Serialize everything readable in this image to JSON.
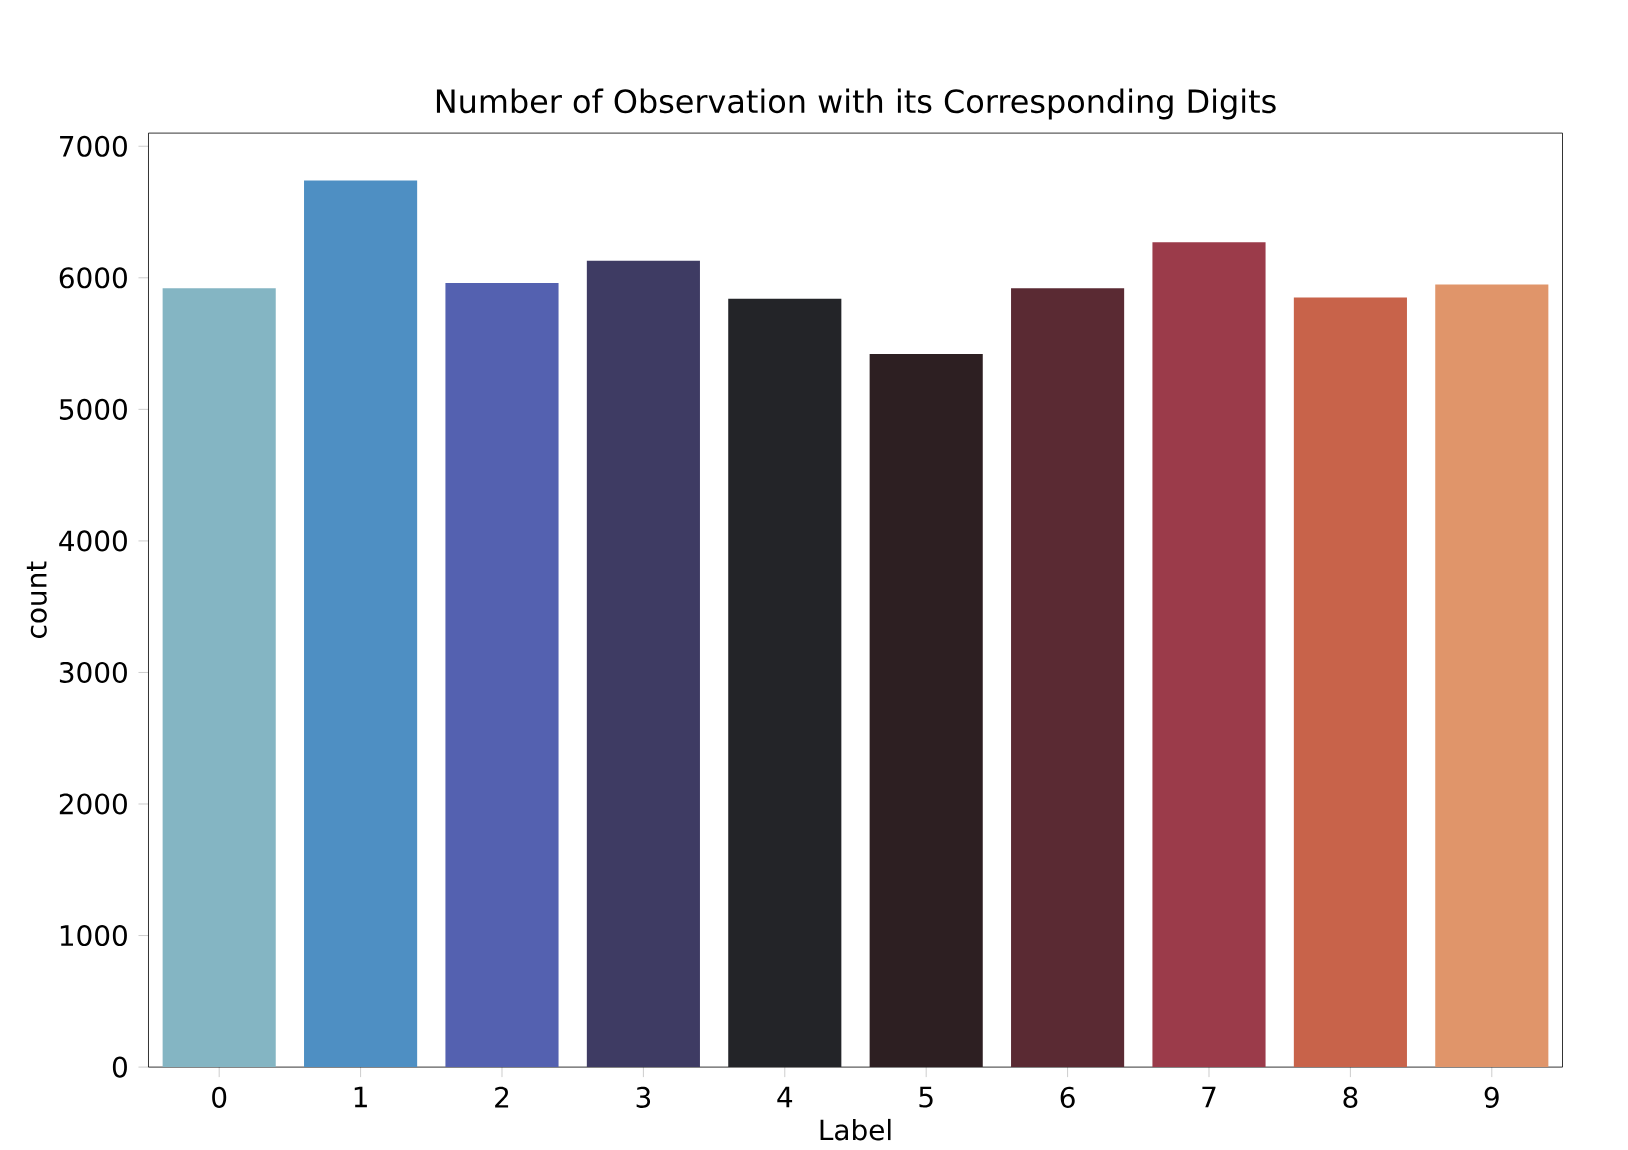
{
  "chart_data": {
    "type": "bar",
    "title": "Number of Observation with its Corresponding Digits",
    "xlabel": "Label",
    "ylabel": "count",
    "categories": [
      "0",
      "1",
      "2",
      "3",
      "4",
      "5",
      "6",
      "7",
      "8",
      "9"
    ],
    "values": [
      5920,
      6740,
      5960,
      6130,
      5840,
      5420,
      5920,
      6270,
      5850,
      5950
    ],
    "colors": [
      "#84b5c3",
      "#4e8fc3",
      "#5461b0",
      "#3e3b63",
      "#232428",
      "#2d1f22",
      "#5a2a33",
      "#9b3b4a",
      "#c8634a",
      "#e0956a"
    ],
    "ylim": [
      0,
      7100
    ],
    "yticks": [
      0,
      1000,
      2000,
      3000,
      4000,
      5000,
      6000,
      7000
    ]
  }
}
